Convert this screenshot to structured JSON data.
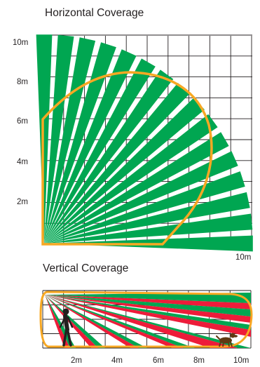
{
  "horizontal": {
    "title": "Horizontal Coverage",
    "y_ticks": [
      "10m",
      "8m",
      "6m",
      "4m",
      "2m"
    ],
    "x_label": "10m",
    "beam_count": 16
  },
  "vertical": {
    "title": "Vertical Coverage",
    "x_ticks": [
      "2m",
      "4m",
      "6m",
      "8m",
      "10m"
    ],
    "beam_count": 8
  },
  "colors": {
    "beam_green": "#00a651",
    "beam_red": "#ed1c3a",
    "coverage_outline": "#f7a823",
    "grid": "#231f20"
  },
  "icons": [
    "person-icon",
    "dog-icon"
  ]
}
